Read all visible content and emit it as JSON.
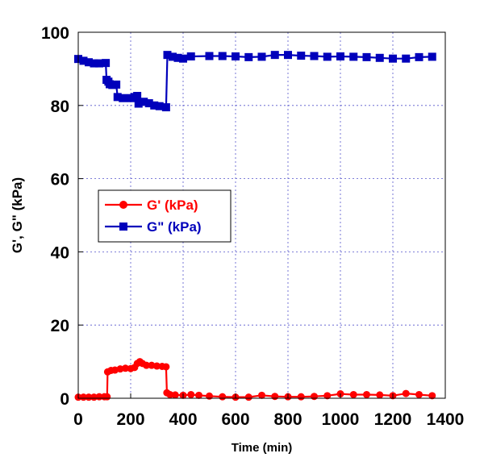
{
  "chart_data": {
    "type": "line",
    "xlabel": "Time (min)",
    "ylabel": "G', G\" (kPa)",
    "xlim": [
      0,
      1400
    ],
    "ylim": [
      0,
      100
    ],
    "xticks": [
      0,
      200,
      400,
      600,
      800,
      1000,
      1200,
      1400
    ],
    "yticks": [
      0,
      20,
      40,
      60,
      80,
      100
    ],
    "grid": true,
    "legend_position": "middle-left",
    "series": [
      {
        "name": "G' (kPa)",
        "color": "#ff0000",
        "marker": "circle",
        "points": [
          [
            0,
            0.3
          ],
          [
            20,
            0.3
          ],
          [
            40,
            0.3
          ],
          [
            60,
            0.3
          ],
          [
            80,
            0.4
          ],
          [
            100,
            0.4
          ],
          [
            110,
            0.4
          ],
          [
            112,
            7.2
          ],
          [
            125,
            7.6
          ],
          [
            140,
            7.7
          ],
          [
            160,
            8.0
          ],
          [
            180,
            8.2
          ],
          [
            200,
            8.1
          ],
          [
            215,
            8.4
          ],
          [
            225,
            9.5
          ],
          [
            235,
            10.0
          ],
          [
            245,
            9.5
          ],
          [
            260,
            9.0
          ],
          [
            280,
            9.0
          ],
          [
            300,
            8.8
          ],
          [
            320,
            8.7
          ],
          [
            335,
            8.6
          ],
          [
            338,
            1.5
          ],
          [
            350,
            1.0
          ],
          [
            370,
            0.9
          ],
          [
            400,
            0.8
          ],
          [
            430,
            1.0
          ],
          [
            460,
            0.8
          ],
          [
            500,
            0.6
          ],
          [
            550,
            0.4
          ],
          [
            600,
            0.3
          ],
          [
            650,
            0.3
          ],
          [
            700,
            0.8
          ],
          [
            750,
            0.5
          ],
          [
            800,
            0.4
          ],
          [
            850,
            0.4
          ],
          [
            900,
            0.5
          ],
          [
            950,
            0.7
          ],
          [
            1000,
            1.2
          ],
          [
            1050,
            1.0
          ],
          [
            1100,
            1.0
          ],
          [
            1150,
            0.9
          ],
          [
            1200,
            0.7
          ],
          [
            1250,
            1.3
          ],
          [
            1300,
            1.0
          ],
          [
            1350,
            0.7
          ]
        ]
      },
      {
        "name": "G\" (kPa)",
        "color": "#0000bb",
        "marker": "square",
        "points": [
          [
            0,
            92.7
          ],
          [
            20,
            92.2
          ],
          [
            40,
            91.8
          ],
          [
            60,
            91.5
          ],
          [
            80,
            91.5
          ],
          [
            105,
            91.6
          ],
          [
            108,
            87.0
          ],
          [
            115,
            86.5
          ],
          [
            120,
            85.8
          ],
          [
            130,
            85.6
          ],
          [
            145,
            85.7
          ],
          [
            150,
            82.3
          ],
          [
            170,
            82.0
          ],
          [
            200,
            82.0
          ],
          [
            215,
            82.3
          ],
          [
            225,
            82.6
          ],
          [
            230,
            80.5
          ],
          [
            250,
            81.0
          ],
          [
            270,
            80.6
          ],
          [
            290,
            80.0
          ],
          [
            310,
            79.8
          ],
          [
            335,
            79.5
          ],
          [
            340,
            93.8
          ],
          [
            360,
            93.3
          ],
          [
            380,
            93.0
          ],
          [
            400,
            92.8
          ],
          [
            430,
            93.4
          ],
          [
            500,
            93.5
          ],
          [
            550,
            93.5
          ],
          [
            600,
            93.4
          ],
          [
            650,
            93.2
          ],
          [
            700,
            93.3
          ],
          [
            750,
            93.8
          ],
          [
            800,
            93.8
          ],
          [
            850,
            93.6
          ],
          [
            900,
            93.5
          ],
          [
            950,
            93.3
          ],
          [
            1000,
            93.4
          ],
          [
            1050,
            93.3
          ],
          [
            1100,
            93.2
          ],
          [
            1150,
            93.0
          ],
          [
            1200,
            92.8
          ],
          [
            1250,
            92.8
          ],
          [
            1300,
            93.2
          ],
          [
            1350,
            93.3
          ]
        ]
      }
    ]
  }
}
